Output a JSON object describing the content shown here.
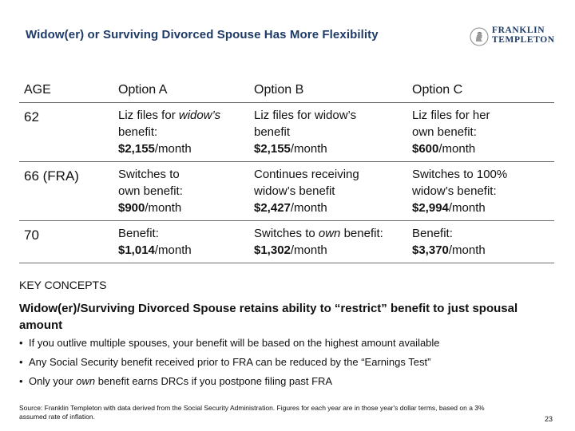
{
  "slide": {
    "title": "Widow(er) or Surviving Divorced Spouse Has More Flexibility",
    "logo": {
      "line1": "FRANKLIN",
      "line2": "TEMPLETON"
    },
    "page_number": "23"
  },
  "table": {
    "headers": [
      "AGE",
      "Option A",
      "Option B",
      "Option C"
    ],
    "rows": [
      {
        "age": "62",
        "a": {
          "l1_pre": "Liz files for ",
          "l1_em": "widow’s",
          "l1_post": "",
          "l2": "benefit:",
          "amount": "$2,155",
          "unit": "/month"
        },
        "b": {
          "l1": "Liz files for widow’s",
          "l2": "benefit",
          "amount": "$2,155",
          "unit": "/month"
        },
        "c": {
          "l1": "Liz files for her",
          "l2": "own benefit:",
          "amount": "$600",
          "unit": "/month"
        }
      },
      {
        "age": "66 (FRA)",
        "a": {
          "l1": "Switches to",
          "l2": "own benefit:",
          "amount": "$900",
          "unit": "/month"
        },
        "b": {
          "l1": "Continues receiving",
          "l2": "widow’s benefit",
          "amount": "$2,427",
          "unit": "/month"
        },
        "c": {
          "l1": "Switches to 100%",
          "l2": "widow’s benefit:",
          "amount": "$2,994",
          "unit": "/month"
        }
      },
      {
        "age": "70",
        "a": {
          "l1": "Benefit:",
          "amount": "$1,014",
          "unit": "/month"
        },
        "b": {
          "l1_pre": "Switches to ",
          "l1_em": "own",
          "l1_post": " benefit:",
          "amount": "$1,302",
          "unit": "/month"
        },
        "c": {
          "l1": "Benefit:",
          "amount": "$3,370",
          "unit": "/month"
        }
      }
    ]
  },
  "key_concepts": {
    "heading": "KEY CONCEPTS",
    "main": "Widow(er)/Surviving Divorced Spouse retains ability to “restrict” benefit to just spousal amount",
    "bullet_char": "•",
    "bullets": [
      {
        "pre": "If you outlive multiple spouses, your benefit will be based on the highest amount available",
        "em": "",
        "post": ""
      },
      {
        "pre": "Any Social Security benefit received prior to FRA can be reduced by the “Earnings Test”",
        "em": "",
        "post": ""
      },
      {
        "pre": "Only your ",
        "em": "own",
        "post": " benefit earns DRCs if you postpone filing past FRA"
      }
    ]
  },
  "source": "Source: Franklin Templeton with data derived from the Social Security Administration. Figures for each year are in those year's dollar terms, based on a 3% assumed rate of inflation.",
  "colors": {
    "title": "#1e3a66",
    "text": "#111111",
    "rule": "#6f6f6f"
  }
}
